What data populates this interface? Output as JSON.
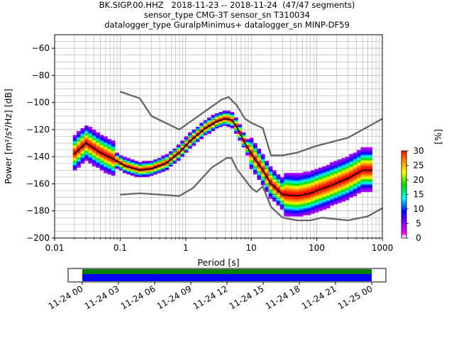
{
  "header": {
    "line1": "BK.SIGP.00.HHZ   2018-11-23 -- 2018-11-24  (47/47 segments)",
    "line2": "sensor_type CMG-3T sensor_sn T310034",
    "line3": "datalogger_type GuralpMinimus+ datalogger_sn MINP-DF59"
  },
  "chart_data": [
    {
      "type": "heatmap",
      "title": "BK.SIGP.00.HHZ   2018-11-23 -- 2018-11-24  (47/47 segments)",
      "xlabel": "Period [s]",
      "ylabel": "Power [m²/s⁴/Hz] [dB]",
      "xscale": "log",
      "xlim": [
        0.01,
        1000
      ],
      "ylim": [
        -200,
        -50
      ],
      "grid": true,
      "x_ticks": [
        "0.01",
        "0.1",
        "1",
        "10",
        "100",
        "1000"
      ],
      "y_ticks": [
        "−60",
        "−80",
        "−100",
        "−120",
        "−140",
        "−160",
        "−180",
        "−200"
      ],
      "colorbar": {
        "label": "[%]",
        "range": [
          0,
          30
        ],
        "ticks": [
          "0",
          "5",
          "10",
          "15",
          "20",
          "25",
          "30"
        ]
      },
      "series": [
        {
          "name": "",
          "x": [
            0.02,
            0.03,
            0.05,
            0.08,
            0.12,
            0.2,
            0.3,
            0.5,
            0.8,
            1.2,
            2,
            3,
            4,
            5,
            6,
            8,
            10,
            15,
            20,
            30,
            50,
            80,
            100,
            150,
            300,
            500,
            700
          ],
          "y": [
            -138,
            -130,
            -137,
            -142,
            -147,
            -150,
            -149,
            -145,
            -137,
            -128,
            -119,
            -114,
            -112,
            -113,
            -118,
            -130,
            -138,
            -150,
            -160,
            -168,
            -169,
            -167,
            -165,
            -162,
            -156,
            -150,
            -150
          ]
        },
        {
          "name": "",
          "x": [
            0.1,
            0.2,
            0.3,
            0.8,
            3.5,
            4.5,
            6,
            8,
            10,
            15,
            20,
            30,
            50,
            100,
            300,
            1000
          ],
          "y": [
            -92,
            -97,
            -110,
            -120,
            -98,
            -96,
            -102,
            -112,
            -115,
            -119,
            -139,
            -139,
            -137,
            -132,
            -126,
            -112
          ]
        },
        {
          "name": "",
          "x": [
            0.1,
            0.2,
            0.8,
            1.3,
            2.5,
            4.2,
            5,
            6,
            10,
            12,
            15,
            20,
            30,
            50,
            80,
            120,
            300,
            600,
            1000
          ],
          "y": [
            -168,
            -167,
            -169,
            -163,
            -148,
            -141,
            -141,
            -149,
            -163,
            -166,
            -162,
            -177,
            -185,
            -187,
            -187,
            -185,
            -187,
            -184,
            -178
          ]
        }
      ]
    },
    {
      "type": "bar",
      "x_ticks": [
        "11-24 00",
        "11-24 03",
        "11-24 06",
        "11-24 09",
        "11-24 12",
        "11-24 15",
        "11-24 18",
        "11-24 21",
        "11-25 00"
      ],
      "bands": [
        "#008000",
        "#0000ff"
      ]
    }
  ]
}
